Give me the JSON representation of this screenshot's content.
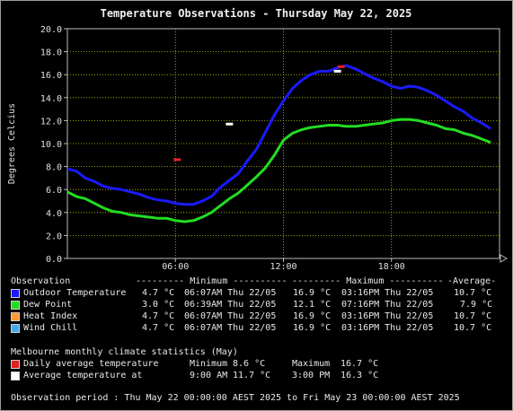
{
  "chart_data": {
    "type": "line",
    "title": "Temperature Observations - Thursday May 22, 2025",
    "ylabel": "Degrees Celcius",
    "xlabel": "",
    "ylim": [
      0,
      20
    ],
    "yticks": [
      "0.0",
      "2.0",
      "4.0",
      "6.0",
      "8.0",
      "10.0",
      "12.0",
      "14.0",
      "16.0",
      "18.0",
      "20.0"
    ],
    "xlim": [
      0,
      24
    ],
    "xticks": [
      {
        "x": 6,
        "label": "06:00"
      },
      {
        "x": 12,
        "label": "12:00"
      },
      {
        "x": 18,
        "label": "18:00"
      }
    ],
    "grid": true,
    "background": "#000000",
    "series": [
      {
        "name": "Outdoor Temperature",
        "color": "#1a1aff",
        "x": [
          0,
          0.5,
          1,
          1.5,
          2,
          2.5,
          3,
          3.5,
          4,
          4.5,
          5,
          5.5,
          6,
          6.5,
          7,
          7.5,
          8,
          8.5,
          9,
          9.5,
          10,
          10.5,
          11,
          11.5,
          12,
          12.5,
          13,
          13.5,
          14,
          14.5,
          15,
          15.5,
          16,
          16.5,
          17,
          17.5,
          18,
          18.5,
          19,
          19.5,
          20,
          20.5,
          21,
          21.5,
          22,
          22.5,
          23,
          23.5
        ],
        "y": [
          7.8,
          7.6,
          7.0,
          6.7,
          6.3,
          6.1,
          6.0,
          5.8,
          5.6,
          5.3,
          5.1,
          5.0,
          4.8,
          4.7,
          4.7,
          5.0,
          5.4,
          6.2,
          6.8,
          7.4,
          8.5,
          9.5,
          11.0,
          12.5,
          13.7,
          14.8,
          15.5,
          16.0,
          16.3,
          16.3,
          16.6,
          16.8,
          16.5,
          16.1,
          15.7,
          15.4,
          15.0,
          14.8,
          15.0,
          14.9,
          14.6,
          14.2,
          13.7,
          13.2,
          12.8,
          12.2,
          11.8,
          11.3
        ]
      },
      {
        "name": "Dew Point",
        "color": "#22dd22",
        "x": [
          0,
          0.5,
          1,
          1.5,
          2,
          2.5,
          3,
          3.5,
          4,
          4.5,
          5,
          5.5,
          6,
          6.5,
          7,
          7.5,
          8,
          8.5,
          9,
          9.5,
          10,
          10.5,
          11,
          11.5,
          12,
          12.5,
          13,
          13.5,
          14,
          14.5,
          15,
          15.5,
          16,
          16.5,
          17,
          17.5,
          18,
          18.5,
          19,
          19.5,
          20,
          20.5,
          21,
          21.5,
          22,
          22.5,
          23,
          23.5
        ],
        "y": [
          5.8,
          5.4,
          5.2,
          4.8,
          4.4,
          4.1,
          4.0,
          3.8,
          3.7,
          3.6,
          3.5,
          3.5,
          3.3,
          3.2,
          3.3,
          3.6,
          4.0,
          4.6,
          5.2,
          5.7,
          6.4,
          7.1,
          7.9,
          9.0,
          10.3,
          10.9,
          11.2,
          11.4,
          11.5,
          11.6,
          11.6,
          11.5,
          11.5,
          11.6,
          11.7,
          11.8,
          12.0,
          12.1,
          12.1,
          12.0,
          11.8,
          11.6,
          11.3,
          11.2,
          10.9,
          10.7,
          10.4,
          10.1
        ]
      }
    ],
    "markers": [
      {
        "name": "Daily average temperature",
        "color": "#dd2222",
        "x": [
          6.1,
          15.2
        ],
        "y": [
          8.6,
          16.7
        ]
      },
      {
        "name": "Average temperature at",
        "color": "#ffffff",
        "x": [
          9.0,
          15.0
        ],
        "y": [
          11.7,
          16.3
        ]
      }
    ]
  },
  "table": {
    "header": {
      "observation": "Observation",
      "min": "--------- Minimum ----------",
      "max": "--------- Maximum ----------",
      "avg": "-Average-"
    },
    "rows": [
      {
        "color": "#1a1aff",
        "name": "Outdoor Temperature",
        "min": "4.7 °C",
        "min_time": "06:07AM Thu 22/05",
        "max": "16.9 °C",
        "max_time": "03:16PM Thu 22/05",
        "avg": "10.7 °C"
      },
      {
        "color": "#22dd22",
        "name": "Dew Point",
        "min": "3.0 °C",
        "min_time": "06:39AM Thu 22/05",
        "max": "12.1 °C",
        "max_time": "07:16PM Thu 22/05",
        "avg": "7.9 °C"
      },
      {
        "color": "#ff9933",
        "name": "Heat Index",
        "min": "4.7 °C",
        "min_time": "06:07AM Thu 22/05",
        "max": "16.9 °C",
        "max_time": "03:16PM Thu 22/05",
        "avg": "10.7 °C"
      },
      {
        "color": "#44aaee",
        "name": "Wind Chill",
        "min": "4.7 °C",
        "min_time": "06:07AM Thu 22/05",
        "max": "16.9 °C",
        "max_time": "03:16PM Thu 22/05",
        "avg": "10.7 °C"
      }
    ]
  },
  "climate": {
    "title": "Melbourne monthly climate statistics (May)",
    "daily": {
      "color": "#dd2222",
      "label": "Daily average temperature",
      "min_label": "Minimum",
      "min": "8.6 °C",
      "max_label": "Maximum",
      "max": "16.7 °C"
    },
    "at": {
      "color": "#ffffff",
      "label": "Average temperature at",
      "t1": "9:00 AM",
      "v1": "11.7 °C",
      "t2": "3:00 PM",
      "v2": "16.3 °C"
    }
  },
  "period": "Observation period : Thu May 22 00:00:00 AEST 2025 to Fri May 23 00:00:00 AEST 2025"
}
